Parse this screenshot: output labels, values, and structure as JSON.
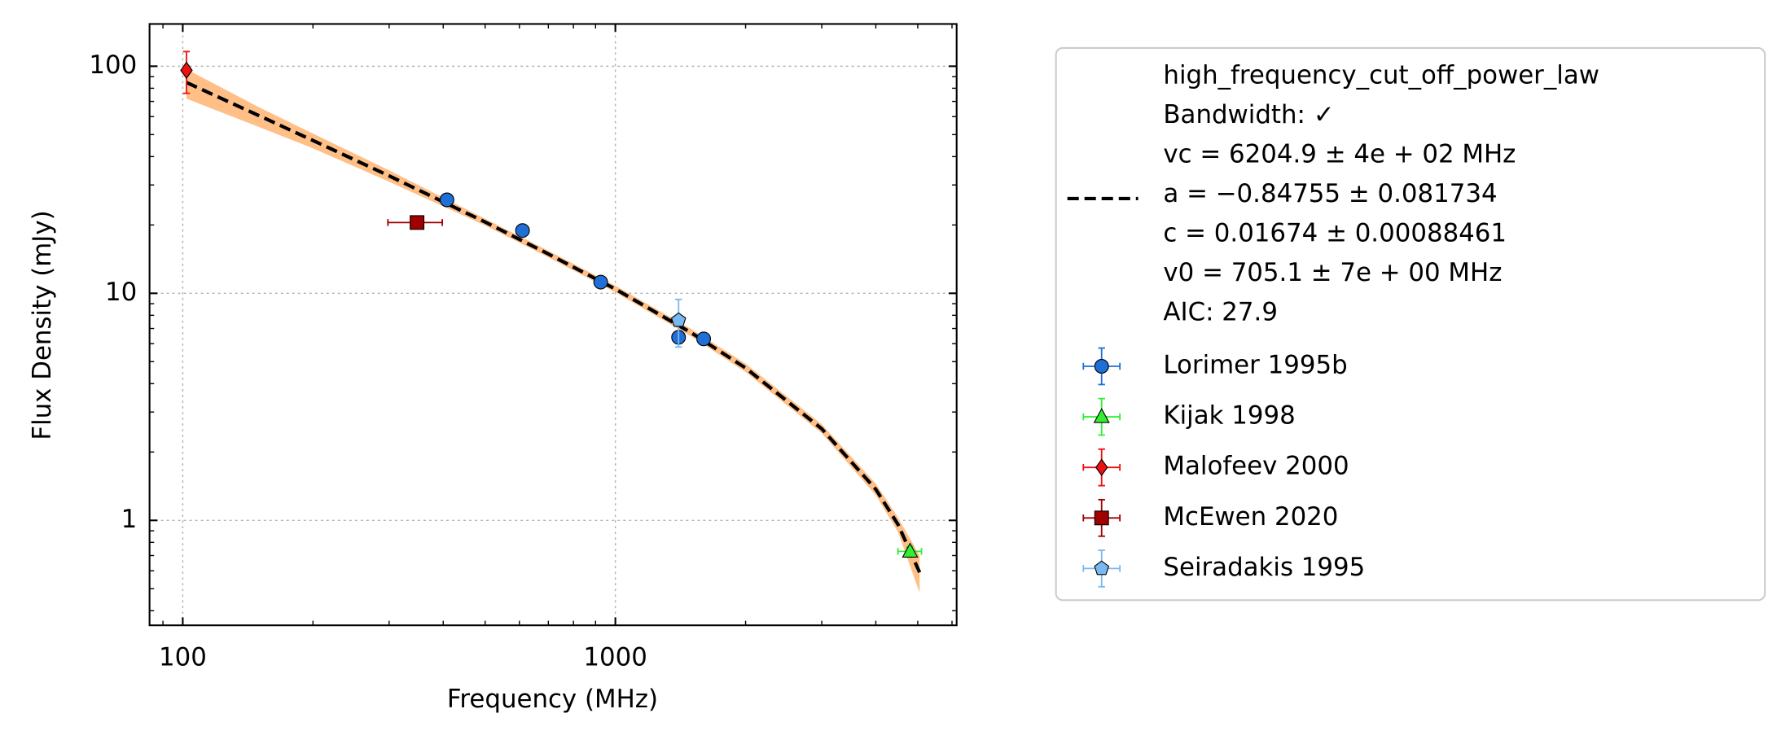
{
  "chart_data": {
    "type": "scatter",
    "xlabel": "Frequency (MHz)",
    "ylabel": "Flux Density (mJy)",
    "xscale": "log",
    "yscale": "log",
    "xlim": [
      83.8,
      6150
    ],
    "ylim": [
      0.345,
      153.5
    ],
    "xticks": [
      100,
      1000
    ],
    "yticks": [
      1,
      10,
      100
    ],
    "xminorticks": [
      90,
      200,
      300,
      400,
      500,
      600,
      700,
      800,
      900,
      2000,
      3000,
      4000,
      5000,
      6000
    ],
    "yminorticks": [
      0.4,
      0.5,
      0.6,
      0.7,
      0.8,
      0.9,
      2,
      3,
      4,
      5,
      6,
      7,
      8,
      9,
      20,
      30,
      40,
      50,
      60,
      70,
      80,
      90
    ],
    "grid": true,
    "legend": "outside right",
    "fit": {
      "label_lines": [
        "high_frequency_cut_off_power_law",
        "Bandwidth: ✓",
        "vc = 6204.9 ± 4e + 02 MHz",
        "a = −0.84755 ± 0.081734",
        "c = 0.01674 ± 0.00088461",
        "v0 = 705.1 ± 7e + 00 MHz",
        "AIC: 27.9"
      ],
      "color": "#000000",
      "band_color": "#ffbf87",
      "x": [
        102,
        150,
        200,
        300,
        500,
        700,
        1000,
        1500,
        2000,
        3000,
        4000,
        4500,
        5050
      ],
      "y": [
        84.8,
        60.6,
        47.1,
        32.9,
        20.6,
        14.9,
        10.44,
        6.69,
        4.69,
        2.53,
        1.37,
        0.96,
        0.59
      ],
      "band_lower": [
        72,
        54,
        43.5,
        31,
        19.9,
        14.4,
        10.1,
        6.45,
        4.5,
        2.42,
        1.29,
        0.89,
        0.48
      ],
      "band_upper": [
        97,
        66,
        50.5,
        34.8,
        21.3,
        15.4,
        10.8,
        6.95,
        4.9,
        2.65,
        1.45,
        1.03,
        0.7
      ]
    },
    "series": [
      {
        "name": "Lorimer 1995b",
        "color": "#1f6fd6",
        "marker": "circle",
        "x": [
          408,
          610,
          925,
          1400,
          1600
        ],
        "values": [
          25.8,
          18.9,
          11.2,
          6.4,
          6.3
        ],
        "xerr": [
          0,
          0,
          0,
          0,
          0
        ],
        "yerr": [
          0.5,
          0.4,
          0.3,
          0.3,
          0.3
        ]
      },
      {
        "name": "Kijak 1998",
        "color": "#33ee33",
        "marker": "triangle",
        "x": [
          4800
        ],
        "values": [
          0.73
        ],
        "xerr": [
          300
        ],
        "yerr": [
          0.04
        ]
      },
      {
        "name": "Malofeev 2000",
        "color": "#ee1111",
        "marker": "diamond",
        "x": [
          102
        ],
        "values": [
          96
        ],
        "xerr": [
          0
        ],
        "yerr": [
          20
        ]
      },
      {
        "name": "McEwen 2020",
        "color": "#a00000",
        "marker": "square",
        "x": [
          348
        ],
        "values": [
          20.5
        ],
        "xerr": [
          50
        ],
        "yerr": [
          0.8
        ]
      },
      {
        "name": "Seiradakis 1995",
        "color": "#7ab8f0",
        "marker": "pentagon",
        "x": [
          1400
        ],
        "values": [
          7.6
        ],
        "xerr": [
          0
        ],
        "yerr": [
          1.8
        ]
      }
    ]
  }
}
